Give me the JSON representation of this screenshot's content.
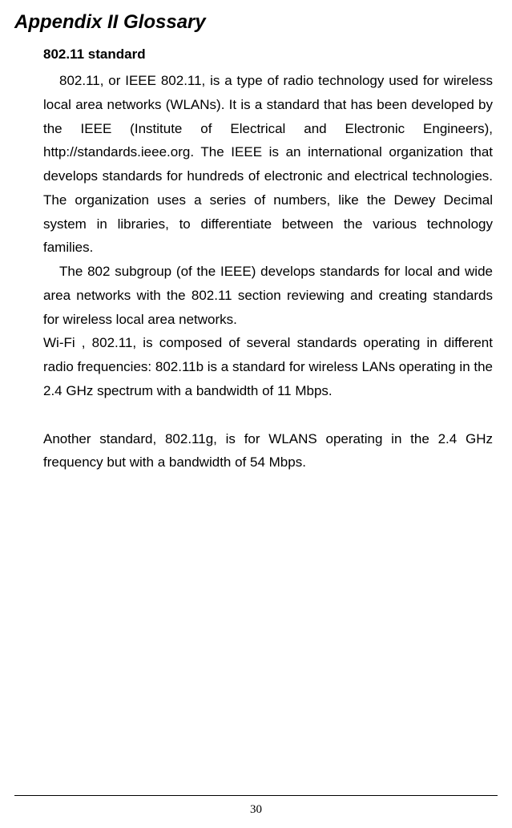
{
  "title": "Appendix II Glossary",
  "term": "802.11 standard",
  "para1": "802.11, or IEEE 802.11, is a type of radio technology used for wireless local area networks (WLANs). It is a standard that has been developed by the IEEE (Institute of Electrical and Electronic Engineers), http://standards.ieee.org. The IEEE is an international organization that develops standards for hundreds of electronic and electrical technologies. The organization uses a series of numbers, like the Dewey Decimal system in libraries, to differentiate between the various technology families.",
  "para2": "The 802 subgroup (of the IEEE) develops standards for local and wide area networks with the 802.11 section reviewing and creating standards for wireless local area networks.",
  "para3": "Wi-Fi , 802.11, is composed of several standards operating in different radio frequencies: 802.11b is a standard for wireless LANs operating in the 2.4 GHz spectrum with a bandwidth of 11 Mbps.",
  "para4": "Another standard, 802.11g, is for WLANS operating in the 2.4 GHz frequency but with a bandwidth of 54 Mbps.",
  "pageNumber": "30",
  "colors": {
    "text": "#000000",
    "background": "#ffffff"
  },
  "fonts": {
    "body": "Verdana, Arial, sans-serif",
    "pageNumber": "Times New Roman, serif",
    "bodySize": 17,
    "titleSize": 24,
    "lineHeight": 1.75
  }
}
